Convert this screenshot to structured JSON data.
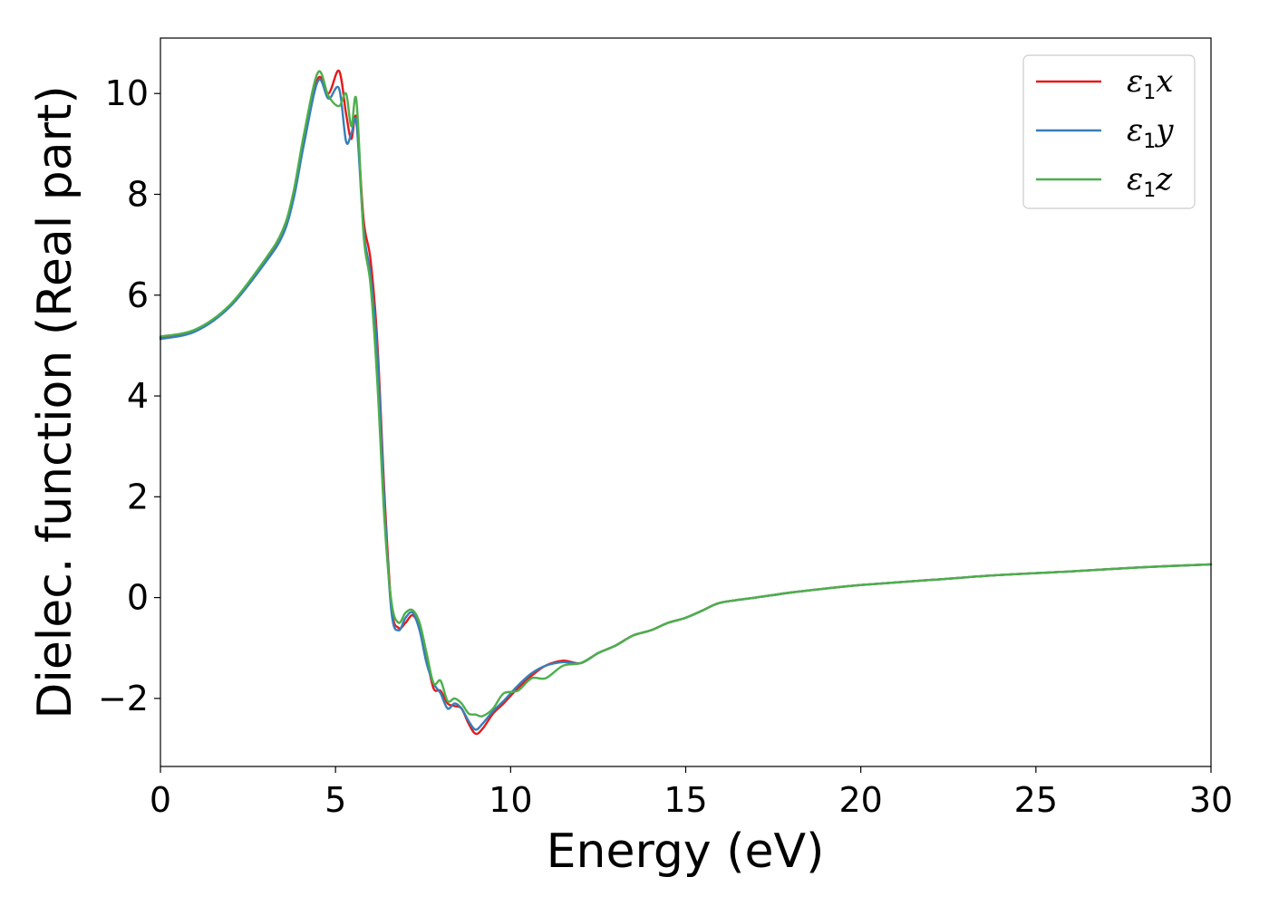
{
  "chart_data": {
    "type": "line",
    "title": "",
    "xlabel": "Energy (eV)",
    "ylabel": "Dielec. function (Real part)",
    "xlim": [
      0,
      30
    ],
    "ylim": [
      -3.35,
      11.1
    ],
    "xticks": [
      0,
      5,
      10,
      15,
      20,
      25,
      30
    ],
    "xtick_labels": [
      "0",
      "5",
      "10",
      "15",
      "20",
      "25",
      "30"
    ],
    "yticks": [
      -2,
      0,
      2,
      4,
      6,
      8,
      10
    ],
    "ytick_labels": [
      "−2",
      "0",
      "2",
      "4",
      "6",
      "8",
      "10"
    ],
    "grid": false,
    "legend_position": "top-right",
    "series": [
      {
        "name": "ε1x",
        "legend_base": "ε",
        "legend_sub": "1",
        "legend_var": "x",
        "color": "#e41a1c",
        "x": [
          0,
          1,
          2,
          3,
          3.5,
          3.8,
          4.1,
          4.5,
          4.8,
          5.1,
          5.3,
          5.45,
          5.6,
          5.8,
          6.0,
          6.2,
          6.4,
          6.6,
          6.8,
          7.0,
          7.2,
          7.4,
          7.6,
          7.8,
          8.0,
          8.2,
          8.4,
          8.6,
          8.8,
          9.0,
          9.2,
          9.5,
          9.8,
          10.2,
          10.6,
          11.0,
          11.5,
          12.0,
          12.5,
          13.0,
          13.5,
          14.0,
          14.5,
          15.0,
          15.5,
          16.0,
          17.0,
          18.0,
          19.0,
          20.0,
          22.0,
          24.0,
          26.0,
          28.0,
          30.0
        ],
        "y": [
          5.15,
          5.3,
          5.8,
          6.7,
          7.3,
          8.0,
          9.1,
          10.3,
          10.0,
          10.45,
          9.6,
          9.1,
          9.5,
          7.5,
          6.7,
          5.0,
          2.0,
          -0.2,
          -0.6,
          -0.5,
          -0.35,
          -0.6,
          -1.2,
          -1.8,
          -1.85,
          -2.1,
          -2.15,
          -2.2,
          -2.5,
          -2.7,
          -2.6,
          -2.3,
          -2.1,
          -1.8,
          -1.55,
          -1.35,
          -1.25,
          -1.3,
          -1.1,
          -0.95,
          -0.75,
          -0.65,
          -0.5,
          -0.4,
          -0.25,
          -0.1,
          0.0,
          0.1,
          0.18,
          0.25,
          0.35,
          0.45,
          0.52,
          0.6,
          0.66
        ]
      },
      {
        "name": "ε1y",
        "legend_base": "ε",
        "legend_sub": "1",
        "legend_var": "y",
        "color": "#377eb8",
        "x": [
          0,
          1,
          2,
          3,
          3.5,
          3.8,
          4.1,
          4.5,
          4.8,
          5.1,
          5.3,
          5.45,
          5.6,
          5.8,
          6.0,
          6.2,
          6.4,
          6.6,
          6.8,
          7.0,
          7.2,
          7.4,
          7.6,
          7.8,
          8.0,
          8.2,
          8.4,
          8.6,
          8.8,
          9.0,
          9.2,
          9.5,
          9.8,
          10.2,
          10.6,
          11.0,
          11.5,
          12.0,
          12.5,
          13.0,
          13.5,
          14.0,
          14.5,
          15.0,
          15.5,
          16.0,
          17.0,
          18.0,
          19.0,
          20.0,
          22.0,
          24.0,
          26.0,
          28.0,
          30.0
        ],
        "y": [
          5.13,
          5.28,
          5.78,
          6.65,
          7.2,
          7.9,
          9.0,
          10.25,
          9.9,
          10.1,
          9.05,
          9.2,
          9.4,
          7.3,
          6.4,
          4.8,
          1.8,
          -0.3,
          -0.65,
          -0.4,
          -0.3,
          -0.65,
          -1.3,
          -1.7,
          -1.9,
          -2.2,
          -2.1,
          -2.2,
          -2.45,
          -2.62,
          -2.5,
          -2.25,
          -2.05,
          -1.75,
          -1.5,
          -1.35,
          -1.28,
          -1.3,
          -1.1,
          -0.95,
          -0.75,
          -0.65,
          -0.5,
          -0.4,
          -0.25,
          -0.1,
          0.0,
          0.1,
          0.18,
          0.25,
          0.35,
          0.45,
          0.52,
          0.6,
          0.66
        ]
      },
      {
        "name": "ε1z",
        "legend_base": "ε",
        "legend_sub": "1",
        "legend_var": "z",
        "color": "#4daf4a",
        "x": [
          0,
          1,
          2,
          3,
          3.5,
          3.8,
          4.1,
          4.5,
          4.8,
          5.1,
          5.3,
          5.45,
          5.6,
          5.8,
          6.0,
          6.2,
          6.4,
          6.6,
          6.8,
          7.0,
          7.2,
          7.4,
          7.6,
          7.8,
          8.0,
          8.2,
          8.4,
          8.6,
          8.8,
          9.0,
          9.2,
          9.5,
          9.8,
          10.2,
          10.6,
          11.0,
          11.5,
          12.0,
          12.5,
          13.0,
          13.5,
          14.0,
          14.5,
          15.0,
          15.5,
          16.0,
          17.0,
          18.0,
          19.0,
          20.0,
          22.0,
          24.0,
          26.0,
          28.0,
          30.0
        ],
        "y": [
          5.18,
          5.32,
          5.82,
          6.72,
          7.3,
          8.05,
          9.2,
          10.42,
          9.95,
          9.75,
          10.0,
          9.35,
          9.85,
          7.2,
          6.2,
          4.2,
          1.5,
          -0.1,
          -0.5,
          -0.3,
          -0.25,
          -0.5,
          -1.1,
          -1.7,
          -1.65,
          -2.05,
          -2.0,
          -2.1,
          -2.3,
          -2.32,
          -2.35,
          -2.2,
          -1.9,
          -1.85,
          -1.6,
          -1.6,
          -1.35,
          -1.3,
          -1.1,
          -0.95,
          -0.75,
          -0.65,
          -0.5,
          -0.4,
          -0.25,
          -0.1,
          0.0,
          0.1,
          0.18,
          0.25,
          0.35,
          0.45,
          0.52,
          0.6,
          0.66
        ]
      }
    ]
  }
}
